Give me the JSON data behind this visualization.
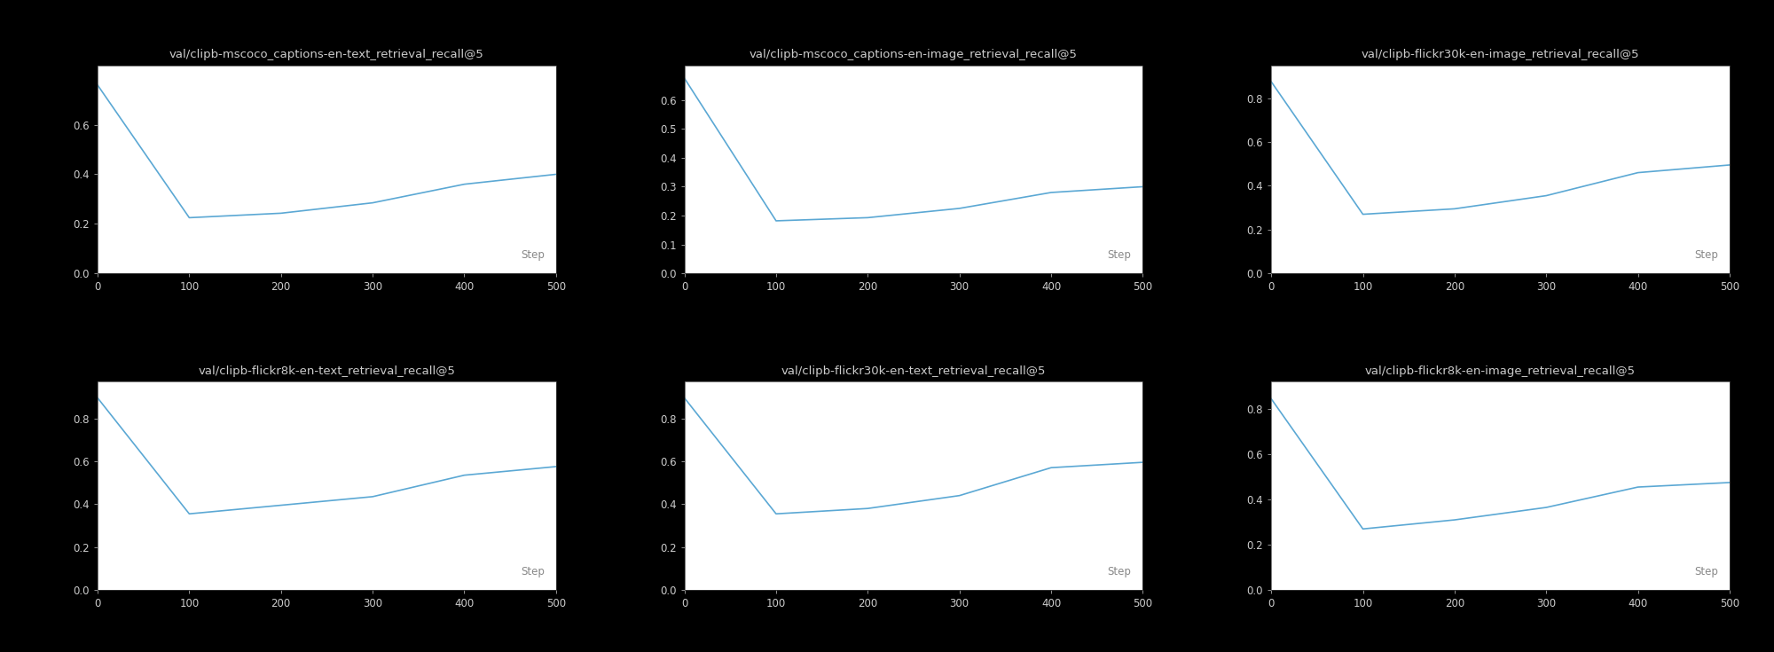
{
  "background_color": "#000000",
  "plot_bg_color": "#ffffff",
  "line_color": "#5ba8d4",
  "line_width": 1.2,
  "title_color": "#cccccc",
  "tick_color": "#cccccc",
  "step_label_color": "#888888",
  "title_fontsize": 9.5,
  "tick_fontsize": 8.5,
  "step_fontsize": 8.5,
  "x_values": [
    0,
    100,
    200,
    300,
    400,
    500
  ],
  "plots": [
    {
      "title": "val/clipb-mscoco_captions-en-text_retrieval_recall@5",
      "y_values": [
        0.76,
        0.225,
        0.243,
        0.285,
        0.36,
        0.4
      ],
      "ylim": [
        0,
        0.84
      ],
      "yticks": [
        0,
        0.2,
        0.4,
        0.6
      ]
    },
    {
      "title": "val/clipb-mscoco_captions-en-image_retrieval_recall@5",
      "y_values": [
        0.675,
        0.182,
        0.193,
        0.225,
        0.28,
        0.3
      ],
      "ylim": [
        0,
        0.72
      ],
      "yticks": [
        0,
        0.1,
        0.2,
        0.3,
        0.4,
        0.5,
        0.6
      ]
    },
    {
      "title": "val/clipb-flickr30k-en-image_retrieval_recall@5",
      "y_values": [
        0.875,
        0.27,
        0.295,
        0.355,
        0.46,
        0.495
      ],
      "ylim": [
        0,
        0.95
      ],
      "yticks": [
        0,
        0.2,
        0.4,
        0.6,
        0.8
      ]
    },
    {
      "title": "val/clipb-flickr8k-en-text_retrieval_recall@5",
      "y_values": [
        0.895,
        0.355,
        0.395,
        0.435,
        0.535,
        0.575
      ],
      "ylim": [
        0,
        0.97
      ],
      "yticks": [
        0,
        0.2,
        0.4,
        0.6,
        0.8
      ]
    },
    {
      "title": "val/clipb-flickr30k-en-text_retrieval_recall@5",
      "y_values": [
        0.895,
        0.355,
        0.38,
        0.44,
        0.57,
        0.595
      ],
      "ylim": [
        0,
        0.97
      ],
      "yticks": [
        0,
        0.2,
        0.4,
        0.6,
        0.8
      ]
    },
    {
      "title": "val/clipb-flickr8k-en-image_retrieval_recall@5",
      "y_values": [
        0.845,
        0.27,
        0.31,
        0.365,
        0.455,
        0.475
      ],
      "ylim": [
        0,
        0.92
      ],
      "yticks": [
        0,
        0.2,
        0.4,
        0.6,
        0.8
      ]
    }
  ]
}
